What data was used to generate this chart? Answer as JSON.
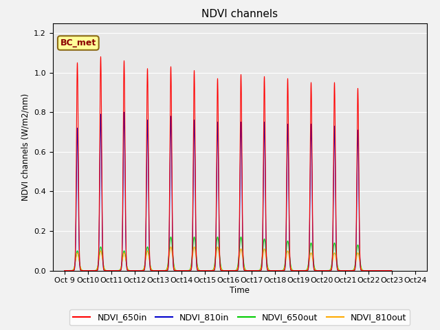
{
  "title": "NDVI channels",
  "ylabel": "NDVI channels (W/m2/nm)",
  "xlabel": "Time",
  "ylim": [
    0,
    1.25
  ],
  "plot_bg_color": "#e8e8e8",
  "fig_bg_color": "#f2f2f2",
  "annotation_text": "BC_met",
  "series_colors": {
    "NDVI_650in": "#ff0000",
    "NDVI_810in": "#0000cc",
    "NDVI_650out": "#00cc00",
    "NDVI_810out": "#ffaa00"
  },
  "legend_labels": [
    "NDVI_650in",
    "NDVI_810in",
    "NDVI_650out",
    "NDVI_810out"
  ],
  "xtick_labels": [
    "Oct 9",
    "Oct 10",
    "Oct 11",
    "Oct 12",
    "Oct 13",
    "Oct 14",
    "Oct 15",
    "Oct 16",
    "Oct 17",
    "Oct 18",
    "Oct 19",
    "Oct 20",
    "Oct 21",
    "Oct 22",
    "Oct 23",
    "Oct 24"
  ],
  "peak_650in": [
    1.05,
    1.08,
    1.06,
    1.02,
    1.03,
    1.01,
    0.97,
    0.99,
    0.98,
    0.97,
    0.95,
    0.95,
    0.92
  ],
  "peak_810in": [
    0.72,
    0.79,
    0.8,
    0.76,
    0.78,
    0.76,
    0.75,
    0.75,
    0.75,
    0.74,
    0.74,
    0.73,
    0.71
  ],
  "peak_650out": [
    0.1,
    0.12,
    0.1,
    0.12,
    0.17,
    0.17,
    0.17,
    0.17,
    0.16,
    0.15,
    0.14,
    0.14,
    0.13
  ],
  "peak_810out": [
    0.09,
    0.1,
    0.09,
    0.1,
    0.12,
    0.12,
    0.12,
    0.11,
    0.11,
    0.1,
    0.09,
    0.09,
    0.09
  ],
  "sigma_in": 0.04,
  "sigma_out": 0.07
}
